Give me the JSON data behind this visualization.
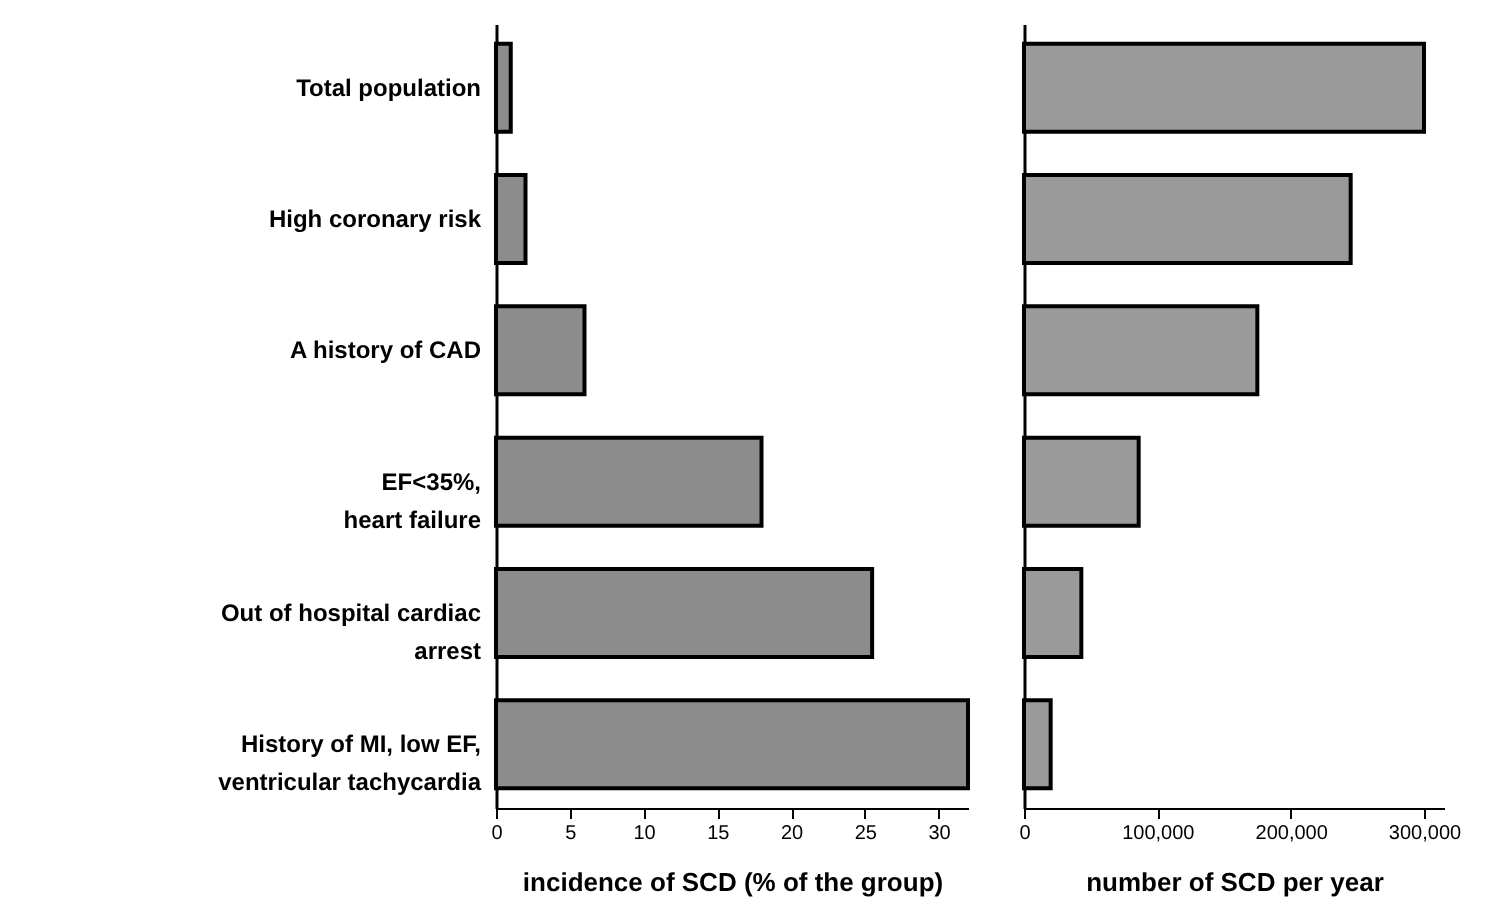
{
  "chart_data": [
    {
      "type": "bar",
      "orientation": "horizontal",
      "xlabel": "incidence of SCD (% of the group)",
      "categories": [
        "Total population",
        "High coronary risk",
        "A history of CAD",
        "EF<35%,\nheart failure",
        "Out of hospital cardiac\narrest",
        "History of MI, low EF,\nventricular tachycardia"
      ],
      "values": [
        1,
        2,
        6,
        18,
        25.5,
        32
      ],
      "color": "#8c8c8c",
      "xlim": [
        0,
        32
      ],
      "xticks": [
        0,
        5,
        10,
        15,
        20,
        25,
        30
      ],
      "grid": false
    },
    {
      "type": "bar",
      "orientation": "horizontal",
      "xlabel": "number of SCD per year",
      "values": [
        300000,
        245000,
        175000,
        86000,
        43000,
        20000
      ],
      "color": "#9a9a9a",
      "xlim": [
        0,
        315000
      ],
      "xticks": [
        0,
        {
          "value": 100000,
          "label": "100,000"
        },
        {
          "value": 200000,
          "label": "200,000"
        },
        {
          "value": 300000,
          "label": "300,000"
        }
      ],
      "tick_labels": "x",
      "grid": false
    }
  ]
}
